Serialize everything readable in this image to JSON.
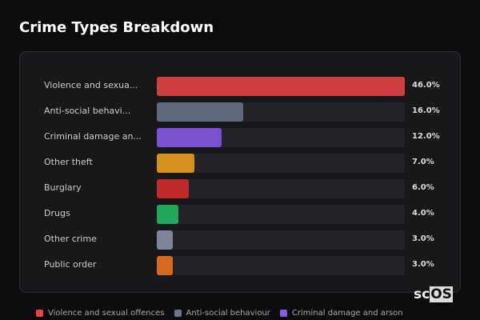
{
  "chart_data": {
    "type": "bar",
    "orientation": "horizontal",
    "title": "Crime Types Breakdown",
    "categories": [
      "Violence and sexua...",
      "Anti-social behavi...",
      "Criminal damage an...",
      "Other theft",
      "Burglary",
      "Drugs",
      "Other crime",
      "Public order"
    ],
    "values": [
      46.0,
      16.0,
      12.0,
      7.0,
      6.0,
      4.0,
      3.0,
      3.0
    ],
    "value_labels": [
      "46.0%",
      "16.0%",
      "12.0%",
      "7.0%",
      "6.0%",
      "4.0%",
      "3.0%",
      "3.0%"
    ],
    "colors": [
      "#d04040",
      "#5f6b7c",
      "#7a52d1",
      "#d4901a",
      "#c02a2a",
      "#22a85a",
      "#7d8798",
      "#d56a1e"
    ],
    "xlim": [
      0,
      46
    ],
    "legend": [
      {
        "name": "Violence and sexual offences",
        "color": "#e84545"
      },
      {
        "name": "Anti-social behaviour",
        "color": "#6b778a"
      },
      {
        "name": "Criminal damage and arson",
        "color": "#8a5ae0"
      }
    ],
    "legend_position": "bottom"
  },
  "watermark": "scOS"
}
